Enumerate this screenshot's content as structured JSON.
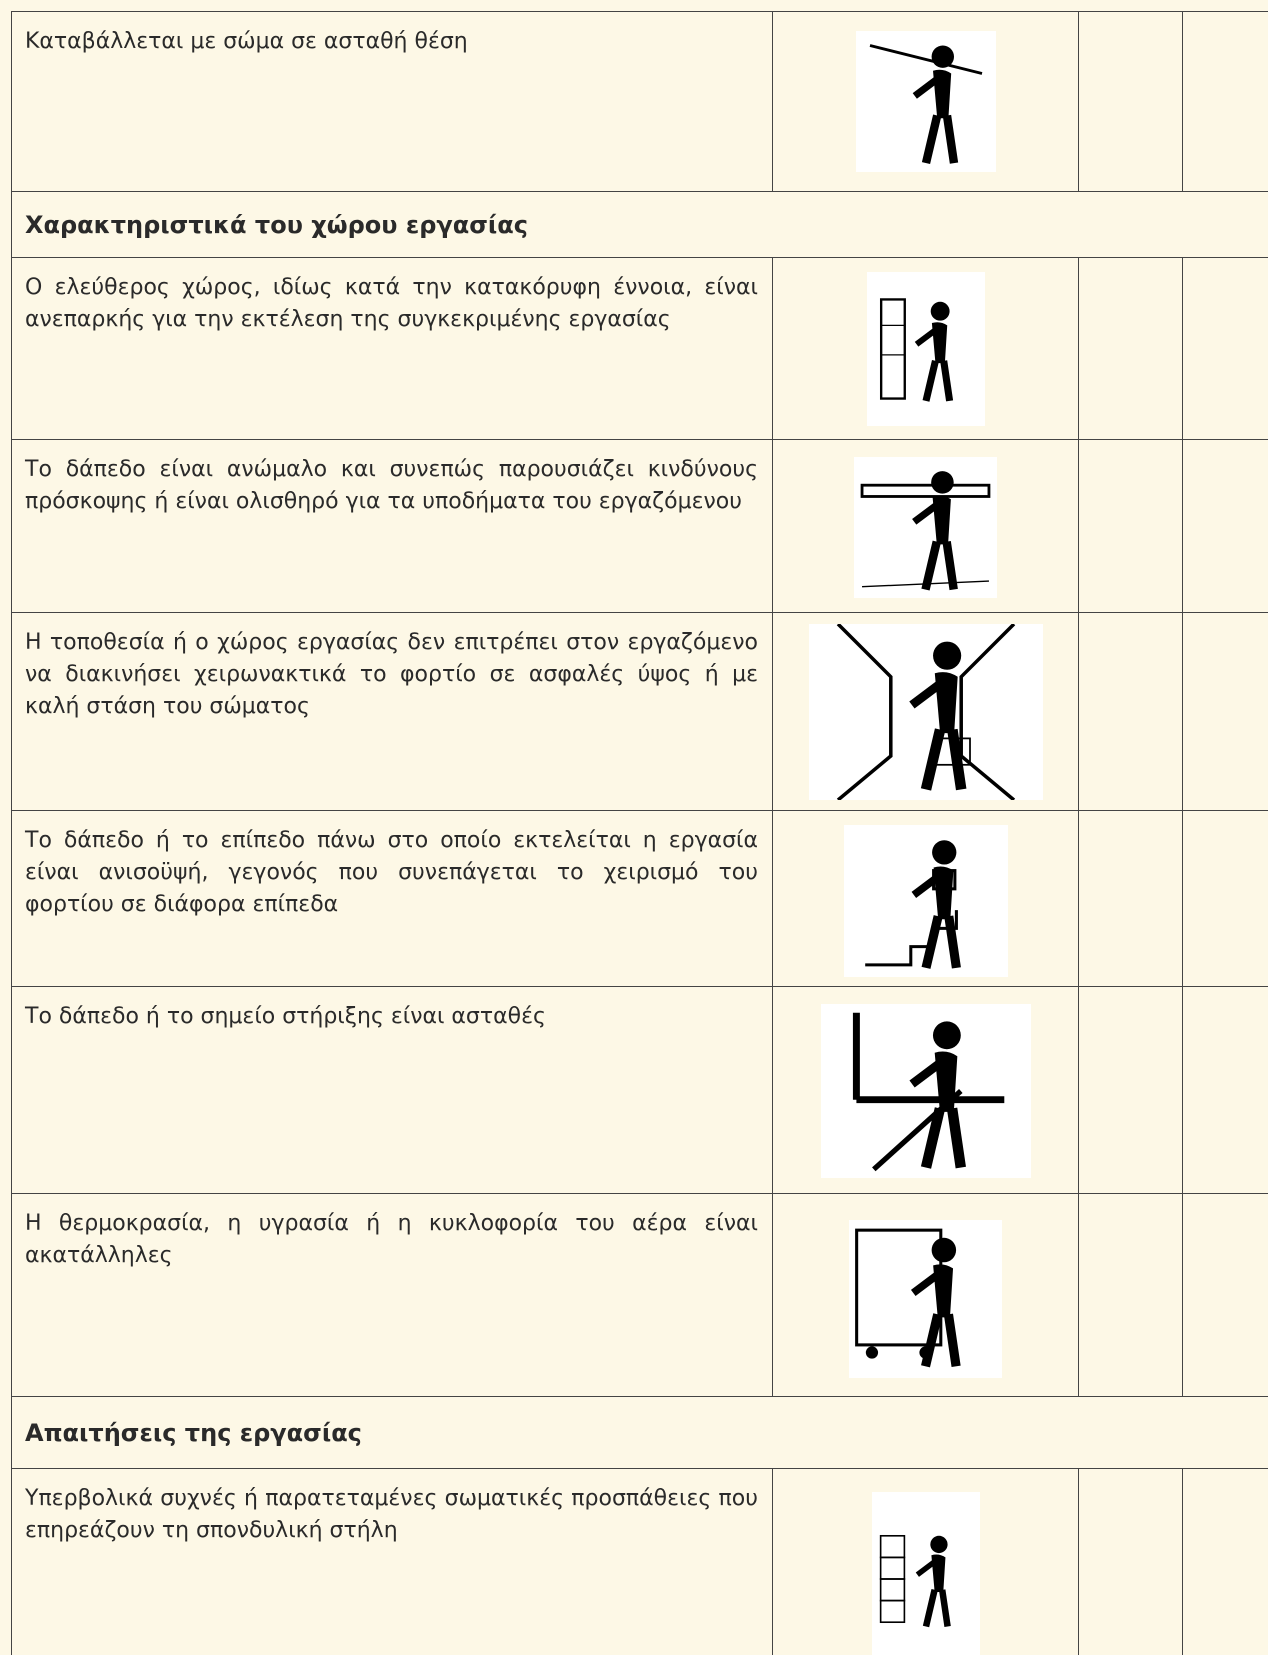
{
  "table": {
    "rows": [
      {
        "text": "Καταβάλλεται με σώμα σε ασταθή θέση"
      },
      {
        "heading": "Χαρακτηριστικά του χώρου εργασίας"
      },
      {
        "text": "Ο ελεύθερος χώρος, ιδίως κατά την κατακόρυφη έννοια, είναι ανεπαρκής για την εκτέλεση της συγκεκριμένης εργασίας"
      },
      {
        "text": "Το δάπεδο είναι ανώμαλο και συνεπώς παρουσιάζει κινδύνους πρόσκοψης ή είναι ολισθηρό για τα υποδήματα του εργαζόμενου"
      },
      {
        "text": "Η τοποθεσία ή ο χώρος εργασίας δεν επιτρέπει στον εργαζόμενο να διακινήσει χειρωνακτικά το φορτίο σε ασφαλές ύψος ή με καλή στάση του σώματος"
      },
      {
        "text": "Το δάπεδο ή το επίπεδο πάνω στο οποίο εκτελείται η εργασία είναι ανισοϋψή, γεγονός που συνεπάγεται το χειρισμό του φορτίου σε διάφορα επίπεδα"
      },
      {
        "text": "Το δάπεδο ή το σημείο στήριξης είναι ασταθές"
      },
      {
        "text": "Η θερμοκρασία, η υγρασία ή η κυκλοφορία του αέρα είναι ακατάλληλες"
      },
      {
        "heading": "Απαιτήσεις της εργασίας"
      },
      {
        "text": "Υπερβολικά συχνές ή παρατεταμένες σωματικές προσπάθειες που επηρεάζουν τη σπονδυλική στήλη"
      }
    ]
  }
}
